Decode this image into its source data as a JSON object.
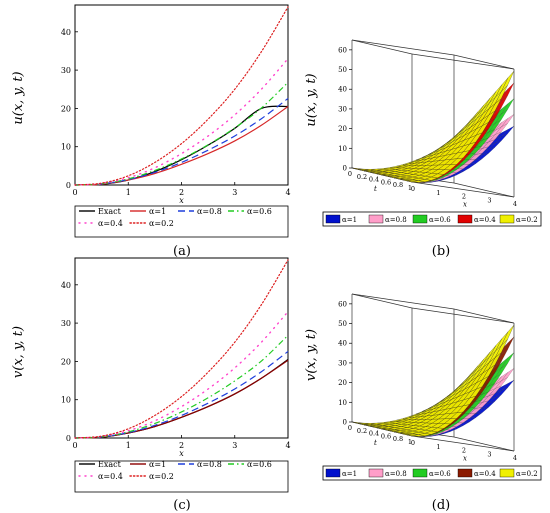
{
  "chart_data": [
    {
      "panel": "(a)",
      "type": "line",
      "xlabel": "x",
      "ylabel": "u(x, y, t)",
      "xlim": [
        0,
        4
      ],
      "ylim": [
        0,
        47
      ],
      "x_ticks": [
        "0",
        "1",
        "2",
        "3",
        "4"
      ],
      "y_ticks": [
        "0",
        "10",
        "20",
        "30",
        "40"
      ],
      "x": [
        0,
        0.5,
        1,
        1.5,
        2,
        2.5,
        3,
        3.5,
        4
      ],
      "legend_position": "bottom",
      "series": [
        {
          "name": "Exact",
          "color": "#000000",
          "dash": "solid",
          "values": [
            0,
            0.2,
            1.3,
            3.5,
            6.6,
            10.4,
            14.8,
            20.0,
            20.5
          ]
        },
        {
          "name": "α=1",
          "color": "#d62728",
          "dash": "solid",
          "values": [
            0,
            0.2,
            1.3,
            3.0,
            5.4,
            8.2,
            11.5,
            15.6,
            20.5
          ]
        },
        {
          "name": "α=0.8",
          "color": "#1f3fdc",
          "dash": "dash",
          "values": [
            0,
            0.3,
            1.4,
            3.3,
            5.9,
            9.1,
            12.8,
            17.3,
            22.6
          ]
        },
        {
          "name": "α=0.6",
          "color": "#22cc22",
          "dash": "dashdot",
          "values": [
            0,
            0.3,
            1.6,
            3.8,
            6.8,
            10.5,
            14.9,
            20.1,
            26.8
          ]
        },
        {
          "name": "α=0.4",
          "color": "#ff44cc",
          "dash": "dot",
          "values": [
            0,
            0.4,
            1.9,
            4.5,
            8.2,
            12.8,
            18.3,
            25.0,
            33.0
          ]
        },
        {
          "name": "α=0.2",
          "color": "#dd2222",
          "dash": "densedot",
          "values": [
            0,
            0.5,
            2.4,
            5.9,
            10.8,
            17.2,
            25.0,
            34.8,
            46.5
          ]
        }
      ]
    },
    {
      "panel": "(b)",
      "type": "surface",
      "zlabel": "u(x, y, t)",
      "z_ticks": [
        "0",
        "10",
        "20",
        "30",
        "40",
        "50",
        "60"
      ],
      "t_ticks": [
        "0",
        "0.2",
        "0.4",
        "0.6",
        "0.8",
        "1"
      ],
      "x_ticks": [
        "0",
        "1",
        "2",
        "3",
        "4"
      ],
      "t_axis_label": "t",
      "x_axis_label": "x",
      "zlim": [
        0,
        65
      ],
      "legend_position": "bottom",
      "series": [
        {
          "name": "α=1",
          "color": "#0010cc",
          "z_max": 36
        },
        {
          "name": "α=0.8",
          "color": "#ff9ec9",
          "z_max": 42
        },
        {
          "name": "α=0.6",
          "color": "#22cc22",
          "z_max": 50
        },
        {
          "name": "α=0.4",
          "color": "#e00000",
          "z_max": 58
        },
        {
          "name": "α=0.2",
          "color": "#f0f000",
          "z_max": 64
        }
      ]
    },
    {
      "panel": "(c)",
      "type": "line",
      "xlabel": "x",
      "ylabel": "v(x, y, t)",
      "xlim": [
        0,
        4
      ],
      "ylim": [
        0,
        47
      ],
      "x_ticks": [
        "0",
        "1",
        "2",
        "3",
        "4"
      ],
      "y_ticks": [
        "0",
        "10",
        "20",
        "30",
        "40"
      ],
      "x": [
        0,
        0.5,
        1,
        1.5,
        2,
        2.5,
        3,
        3.5,
        4
      ],
      "legend_position": "bottom",
      "series": [
        {
          "name": "Exact",
          "color": "#000000",
          "dash": "solid",
          "values": [
            0,
            0.2,
            1.3,
            3.0,
            5.4,
            8.2,
            11.5,
            15.6,
            20.5
          ]
        },
        {
          "name": "α=1",
          "color": "#8b0000",
          "dash": "solid",
          "values": [
            0,
            0.2,
            1.3,
            3.0,
            5.4,
            8.2,
            11.5,
            15.6,
            20.3
          ]
        },
        {
          "name": "α=0.8",
          "color": "#1f3fdc",
          "dash": "dash",
          "values": [
            0,
            0.3,
            1.4,
            3.3,
            5.9,
            9.1,
            12.8,
            17.3,
            22.6
          ]
        },
        {
          "name": "α=0.6",
          "color": "#22cc22",
          "dash": "dashdot",
          "values": [
            0,
            0.3,
            1.6,
            3.8,
            6.8,
            10.5,
            14.9,
            20.1,
            26.8
          ]
        },
        {
          "name": "α=0.4",
          "color": "#ff44cc",
          "dash": "dot",
          "values": [
            0,
            0.4,
            1.9,
            4.5,
            8.2,
            12.8,
            18.3,
            25.0,
            33.0
          ]
        },
        {
          "name": "α=0.2",
          "color": "#dd2222",
          "dash": "densedot",
          "values": [
            0,
            0.5,
            2.4,
            5.9,
            10.8,
            17.2,
            25.0,
            34.8,
            46.5
          ]
        }
      ]
    },
    {
      "panel": "(d)",
      "type": "surface",
      "zlabel": "v(x, y, t)",
      "z_ticks": [
        "0",
        "10",
        "20",
        "30",
        "40",
        "50",
        "60"
      ],
      "t_ticks": [
        "0",
        "0.2",
        "0.4",
        "0.6",
        "0.8",
        "1"
      ],
      "x_ticks": [
        "0",
        "1",
        "2",
        "3",
        "4"
      ],
      "t_axis_label": "t",
      "x_axis_label": "x",
      "zlim": [
        0,
        65
      ],
      "legend_position": "bottom",
      "series": [
        {
          "name": "α=1",
          "color": "#0010cc",
          "z_max": 36
        },
        {
          "name": "α=0.8",
          "color": "#ff9ec9",
          "z_max": 42
        },
        {
          "name": "α=0.6",
          "color": "#22cc22",
          "z_max": 50
        },
        {
          "name": "α=0.4",
          "color": "#8b1a00",
          "z_max": 58
        },
        {
          "name": "α=0.2",
          "color": "#f0f000",
          "z_max": 64
        }
      ]
    }
  ]
}
